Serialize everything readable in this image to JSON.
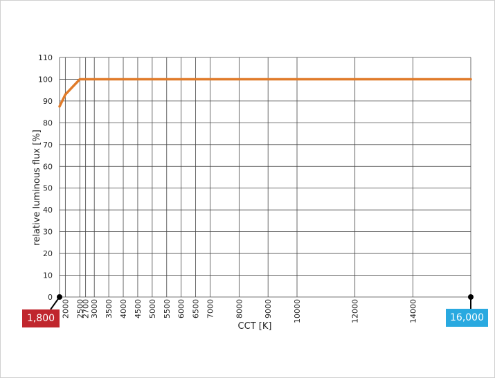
{
  "chart_data": {
    "type": "line",
    "title": "",
    "xlabel": "CCT  [K]",
    "ylabel": "relative luminous flux [%]",
    "xlim": [
      1800,
      16000
    ],
    "ylim": [
      0,
      110
    ],
    "x_ticks": [
      2000,
      2500,
      2700,
      3000,
      3500,
      4000,
      4500,
      5000,
      5500,
      6000,
      6500,
      7000,
      8000,
      9000,
      10000,
      12000,
      14000
    ],
    "y_ticks": [
      0,
      10,
      20,
      30,
      40,
      50,
      60,
      70,
      80,
      90,
      100,
      110
    ],
    "grid": true,
    "series": [
      {
        "color": "#e07b2a",
        "x": [
          1800,
          2000,
          2500,
          2700,
          3000,
          4000,
          6000,
          8000,
          10000,
          12000,
          14000,
          16000
        ],
        "y": [
          87.5,
          93,
          100,
          100,
          100,
          100,
          100,
          100,
          100,
          100,
          100,
          100
        ]
      }
    ],
    "range_markers": [
      {
        "label": "1,800",
        "value": 1800,
        "color": "#c0262d"
      },
      {
        "label": "16,000",
        "value": 16000,
        "color": "#29a9e0"
      }
    ]
  }
}
